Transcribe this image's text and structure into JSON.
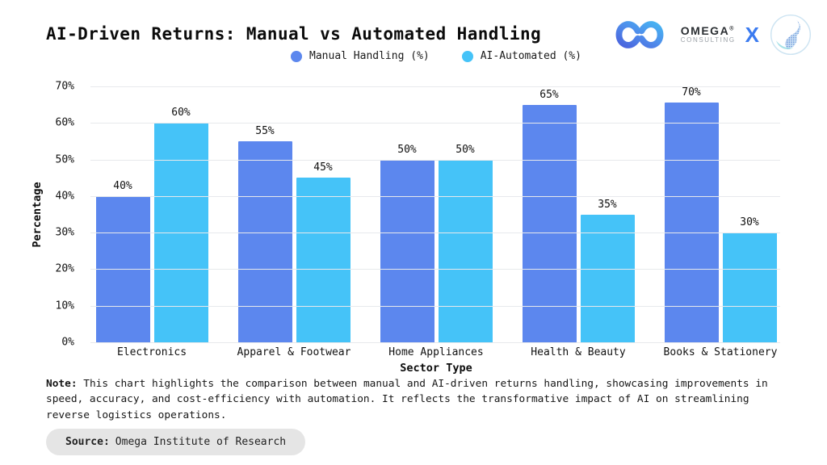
{
  "header": {
    "title": "AI-Driven Returns: Manual vs Automated Handling",
    "brand": {
      "name": "OMEGA",
      "registered": "®",
      "subtitle": "CONSULTING",
      "separator": "X",
      "accent_color": "#3B7BF0",
      "infinity_icon": "infinity-logo",
      "sphere_icon": "sphere-globe-logo"
    }
  },
  "chart_data": {
    "type": "bar",
    "title": "AI-Driven Returns: Manual vs Automated Handling",
    "categories": [
      "Electronics",
      "Apparel & Footwear",
      "Home Appliances",
      "Health & Beauty",
      "Books & Stationery"
    ],
    "series": [
      {
        "name": "Manual Handling (%)",
        "key": "manual-handling",
        "color": "#5C87EE",
        "values": [
          40,
          55,
          50,
          65,
          70
        ]
      },
      {
        "name": "AI-Automated (%)",
        "key": "ai-automated",
        "color": "#45C3F8",
        "values": [
          60,
          45,
          50,
          35,
          30
        ]
      }
    ],
    "xlabel": "Sector Type",
    "ylabel": "Percentage",
    "ylim": [
      0,
      70
    ],
    "ytick_step": 10,
    "tick_suffix": "%",
    "bar_label_suffix": "%",
    "grid": true,
    "legend_position": "top-center"
  },
  "note": {
    "label": "Note:",
    "text": "This chart highlights the comparison between manual and AI-driven returns handling, showcasing improvements in speed, accuracy, and cost-efficiency with automation. It reflects the transformative impact of AI on streamlining reverse logistics operations."
  },
  "source": {
    "label": "Source:",
    "text": "Omega Institute of Research"
  }
}
